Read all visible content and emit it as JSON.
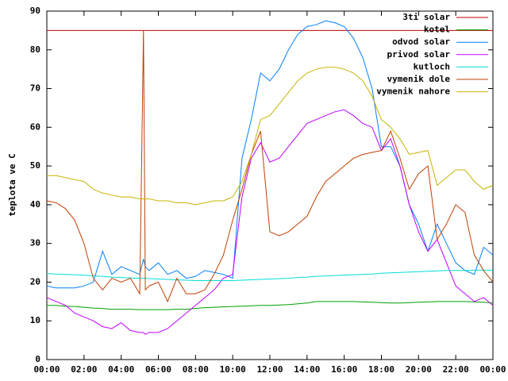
{
  "chart_data": {
    "type": "line",
    "y_label": "teplota ve C",
    "x": [
      0,
      0.5,
      1,
      1.5,
      2,
      2.5,
      3,
      3.5,
      4,
      4.5,
      5,
      5.2,
      5.3,
      5.5,
      6,
      6.5,
      7,
      7.5,
      8,
      8.5,
      9,
      9.5,
      10,
      10.5,
      11,
      11.5,
      12,
      12.5,
      13,
      13.5,
      14,
      14.5,
      15,
      15.5,
      16,
      16.5,
      17,
      17.5,
      18,
      18.5,
      19,
      19.5,
      20,
      20.5,
      21,
      21.5,
      22,
      22.5,
      23,
      23.5,
      24
    ],
    "xlim": [
      0,
      24
    ],
    "xticks": [
      {
        "value": 0,
        "label": "00:00"
      },
      {
        "value": 2,
        "label": "02:00"
      },
      {
        "value": 4,
        "label": "04:00"
      },
      {
        "value": 6,
        "label": "06:00"
      },
      {
        "value": 8,
        "label": "08:00"
      },
      {
        "value": 10,
        "label": "10:00"
      },
      {
        "value": 12,
        "label": "12:00"
      },
      {
        "value": 14,
        "label": "14:00"
      },
      {
        "value": 16,
        "label": "16:00"
      },
      {
        "value": 18,
        "label": "18:00"
      },
      {
        "value": 20,
        "label": "20:00"
      },
      {
        "value": 22,
        "label": "22:00"
      },
      {
        "value": 24,
        "label": "00:00"
      }
    ],
    "ylim": [
      0,
      90
    ],
    "yticks": [
      0,
      10,
      20,
      30,
      40,
      50,
      60,
      70,
      80,
      90
    ],
    "grid": false,
    "legend": "top-right",
    "series": [
      {
        "name": "3ti solar",
        "color": "#c00000",
        "values": [
          85,
          85,
          85,
          85,
          85,
          85,
          85,
          85,
          85,
          85,
          85,
          85,
          85,
          85,
          85,
          85,
          85,
          85,
          85,
          85,
          85,
          85,
          85,
          85,
          85,
          85,
          85,
          85,
          85,
          85,
          85,
          85,
          85,
          85,
          85,
          85,
          85,
          85,
          85,
          85,
          85,
          85,
          85,
          85,
          85,
          85,
          85,
          85,
          85,
          85,
          85
        ]
      },
      {
        "name": "kotel",
        "color": "#00a000",
        "values": [
          14,
          14,
          13.8,
          13.7,
          13.5,
          13.3,
          13.2,
          13,
          13,
          13,
          12.9,
          12.9,
          12.9,
          12.9,
          12.9,
          12.9,
          13,
          13,
          13.2,
          13.4,
          13.5,
          13.6,
          13.7,
          13.8,
          13.9,
          14,
          14,
          14.1,
          14.2,
          14.4,
          14.6,
          15,
          15,
          15,
          15,
          15,
          14.9,
          14.8,
          14.7,
          14.6,
          14.6,
          14.7,
          14.8,
          14.9,
          15,
          15,
          15,
          15,
          14.9,
          14.8,
          14.6
        ]
      },
      {
        "name": "odvod solar",
        "color": "#0080ff",
        "values": [
          19,
          18.5,
          18.5,
          18.5,
          19,
          20,
          28,
          22,
          24,
          23,
          22,
          26,
          24,
          23,
          25,
          22,
          23,
          21,
          21.5,
          23,
          22.5,
          22,
          21,
          52,
          62,
          74,
          72,
          75,
          80,
          84,
          86,
          86.5,
          87.5,
          87,
          86,
          83,
          78,
          70,
          55,
          55,
          50,
          40,
          35,
          28,
          35,
          30,
          25,
          23,
          22,
          29,
          27
        ]
      },
      {
        "name": "privod solar",
        "color": "#c000ff",
        "values": [
          16,
          15,
          14,
          12,
          11,
          10,
          8.5,
          8,
          9.5,
          7.5,
          7,
          7,
          6.5,
          7,
          7,
          8,
          10,
          12,
          14,
          16,
          18,
          21,
          22,
          42,
          52,
          56,
          51,
          52,
          55,
          58,
          61,
          62,
          63,
          64,
          64.5,
          63,
          61,
          60,
          54,
          57,
          50,
          40,
          33,
          28,
          31,
          25,
          19,
          17,
          15,
          16,
          14
        ]
      },
      {
        "name": "kutloch",
        "color": "#00dddd",
        "values": [
          22.2,
          22.1,
          22,
          21.9,
          21.8,
          21.6,
          21.5,
          21.3,
          21.2,
          21.1,
          21,
          21,
          21,
          20.9,
          20.8,
          20.7,
          20.6,
          20.5,
          20.4,
          20.4,
          20.4,
          20.4,
          20.4,
          20.5,
          20.6,
          20.7,
          20.8,
          20.9,
          21,
          21.2,
          21.3,
          21.5,
          21.6,
          21.7,
          21.8,
          21.9,
          22,
          22.1,
          22.3,
          22.4,
          22.5,
          22.6,
          22.7,
          22.8,
          22.9,
          23,
          23,
          23,
          23.1,
          23.1,
          23.1
        ]
      },
      {
        "name": "vymenik dole",
        "color": "#c04000",
        "values": [
          41,
          40.5,
          39,
          36,
          30,
          21,
          18,
          21,
          20,
          21,
          17,
          85,
          18,
          19,
          20,
          15,
          21,
          17,
          17,
          18,
          22,
          27,
          36,
          44,
          53,
          59,
          33,
          32,
          33,
          35,
          37,
          42,
          46,
          48,
          50,
          52,
          53,
          53.5,
          54,
          59,
          52,
          44,
          48,
          50,
          31,
          35,
          40,
          38,
          27,
          23,
          20
        ]
      },
      {
        "name": "vymenik nahore",
        "color": "#c8b400",
        "values": [
          47.5,
          47.5,
          47,
          46.5,
          46,
          44,
          43,
          42.5,
          42,
          42,
          41.5,
          41.5,
          41.5,
          41.5,
          41,
          41,
          40.5,
          40.5,
          40,
          40.5,
          41,
          41,
          42,
          46,
          53,
          62,
          63,
          66,
          69,
          72,
          74,
          75,
          75.5,
          75.5,
          75,
          74,
          72,
          68,
          62,
          60,
          57,
          53,
          53.5,
          54,
          45,
          47,
          49,
          49,
          46,
          44,
          45
        ]
      }
    ]
  }
}
